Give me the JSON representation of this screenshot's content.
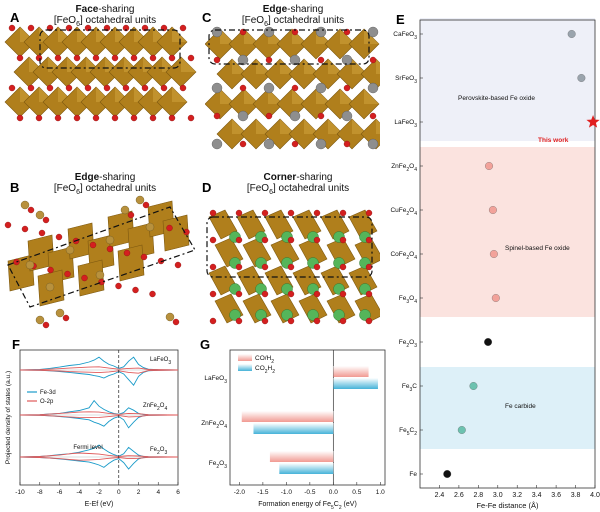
{
  "panels": {
    "A": {
      "letter": "A",
      "bold": "Face",
      "rest": "-sharing",
      "line2": "[FeO6] octahedral units"
    },
    "B": {
      "letter": "B",
      "bold": "Edge",
      "rest": "-sharing",
      "line2": "[FeO6] octahedral units"
    },
    "C": {
      "letter": "C",
      "bold": "Edge",
      "rest": "-sharing",
      "line2": "[FeO6] octahedral units"
    },
    "D": {
      "letter": "D",
      "bold": "Corner",
      "rest": "-sharing",
      "line2": "[FeO6] octahedral units"
    },
    "E": {
      "letter": "E"
    },
    "F": {
      "letter": "F"
    },
    "G": {
      "letter": "G"
    }
  },
  "colors": {
    "fe_oct": "#b07f1c",
    "fe_oct_dark": "#7d5810",
    "oxygen": "#d41f1f",
    "metal_grey": "#8e8e8e",
    "metal_green": "#55b55a",
    "metal_tan": "#b8913d",
    "fe3d": "#1a9bc9",
    "o2p": "#e05a5a",
    "star": "#e02020"
  },
  "chart_data": [
    {
      "type": "scatter",
      "panel": "E",
      "xlabel": "Fe-Fe distance (Å)",
      "xlim": [
        2.2,
        4.0
      ],
      "xticks": [
        "2.4",
        "2.6",
        "2.8",
        "3.0",
        "3.2",
        "3.4",
        "3.6",
        "3.8",
        "4.0"
      ],
      "points": [
        {
          "label": "CaFeO3",
          "base": "CaFeO",
          "sub": "3",
          "x": 3.76,
          "color": "#9aa4ad"
        },
        {
          "label": "SrFeO3",
          "base": "SrFeO",
          "sub": "3",
          "x": 3.86,
          "color": "#9aa4ad"
        },
        {
          "label": "LaFeO3",
          "base": "LaFeO",
          "sub": "3",
          "x": 3.98,
          "color": "#e02020",
          "marker": "star"
        },
        {
          "label": "ZnFe2O4",
          "base": "ZnFe",
          "sub": "2O4",
          "x": 2.91,
          "color": "#f2a29a"
        },
        {
          "label": "CuFe2O4",
          "base": "CuFe",
          "sub": "2O4",
          "x": 2.95,
          "color": "#f2a29a"
        },
        {
          "label": "CoFe2O4",
          "base": "CoFe",
          "sub": "2O4",
          "x": 2.96,
          "color": "#f2a29a"
        },
        {
          "label": "Fe3O4",
          "base": "Fe",
          "sub": "3O4",
          "x": 2.98,
          "color": "#f2a29a"
        },
        {
          "label": "Fe2O3",
          "base": "Fe",
          "sub": "2O3",
          "x": 2.9,
          "color": "#111111"
        },
        {
          "label": "Fe3C",
          "base": "Fe",
          "sub": "3C",
          "x": 2.75,
          "color": "#6cc2b0"
        },
        {
          "label": "Fe5C2",
          "base": "Fe",
          "sub": "5C2",
          "x": 2.63,
          "color": "#6cc2b0"
        },
        {
          "label": "Fe",
          "base": "Fe",
          "sub": "",
          "x": 2.48,
          "color": "#111111"
        }
      ],
      "regions": [
        {
          "name": "Perovskite-based Fe oxide",
          "color": "#eef0f8"
        },
        {
          "name": "Spinel-based Fe oxide",
          "color": "#fbe3df"
        },
        {
          "name": "Fe carbide",
          "color": "#ddf0f8"
        }
      ],
      "annotation": "This work"
    },
    {
      "type": "line",
      "panel": "F",
      "xlabel": "E-Ef (eV)",
      "ylabel": "Projected density of states (a.u.)",
      "xlim": [
        -10,
        6
      ],
      "xticks": [
        "-10",
        "-8",
        "-6",
        "-4",
        "-2",
        "0",
        "2",
        "4",
        "6"
      ],
      "legend": [
        "Fe-3d",
        "O-2p"
      ],
      "annotation": "Fermi level",
      "curve_labels": [
        "LaFeO3",
        "ZnFe2O4",
        "Fe2O3"
      ],
      "series": [
        {
          "name": "LaFeO3 Fe-3d up",
          "color": "#1a9bc9",
          "x": [
            -10,
            -8,
            -7,
            -6,
            -5,
            -4,
            -3,
            -2.5,
            -2,
            -1.5,
            -1,
            -0.5,
            0,
            0.5,
            1,
            1.5,
            2,
            2.5,
            3,
            4,
            5,
            6
          ],
          "y": [
            0,
            0.03,
            0.1,
            0.18,
            0.28,
            0.35,
            0.5,
            0.62,
            0.8,
            0.55,
            0.35,
            0.25,
            0.1,
            0.2,
            0.55,
            0.8,
            0.35,
            0.15,
            0.05,
            0.02,
            0.01,
            0
          ]
        },
        {
          "name": "LaFeO3 Fe-3d down",
          "color": "#1a9bc9",
          "x": [
            -10,
            -8,
            -7,
            -6,
            -5,
            -4,
            -3,
            -2.5,
            -2,
            -1.5,
            -1,
            -0.5,
            0,
            0.5,
            1,
            1.5,
            2,
            2.5,
            3,
            4,
            5,
            6
          ],
          "y": [
            0,
            -0.02,
            -0.05,
            -0.1,
            -0.15,
            -0.22,
            -0.28,
            -0.35,
            -0.4,
            -0.5,
            -0.35,
            -0.25,
            -0.1,
            -0.25,
            -0.6,
            -0.95,
            -0.4,
            -0.15,
            -0.05,
            -0.02,
            -0.01,
            0
          ]
        },
        {
          "name": "LaFeO3 O-2p up",
          "color": "#e05a5a",
          "x": [
            -10,
            -8,
            -6,
            -5,
            -4,
            -3,
            -2,
            -1,
            0,
            1,
            2,
            3,
            6
          ],
          "y": [
            0,
            0.02,
            0.08,
            0.12,
            0.15,
            0.18,
            0.2,
            0.12,
            0.05,
            0.1,
            0.12,
            0.03,
            0
          ]
        },
        {
          "name": "LaFeO3 O-2p down",
          "color": "#e05a5a",
          "x": [
            -10,
            -8,
            -6,
            -5,
            -4,
            -3,
            -2,
            -1,
            0,
            1,
            2,
            3,
            6
          ],
          "y": [
            0,
            -0.02,
            -0.06,
            -0.1,
            -0.12,
            -0.14,
            -0.16,
            -0.12,
            -0.05,
            -0.15,
            -0.2,
            -0.04,
            0
          ]
        },
        {
          "name": "ZnFe2O4 Fe-3d up",
          "color": "#1a9bc9",
          "x": [
            -10,
            -8,
            -7,
            -6,
            -5,
            -4,
            -3,
            -2.5,
            -2,
            -1.5,
            -1,
            -0.5,
            0,
            0.5,
            1,
            1.5,
            2,
            2.5,
            3,
            4,
            5,
            6
          ],
          "y": [
            0,
            0.02,
            0.06,
            0.1,
            0.2,
            0.28,
            0.45,
            0.9,
            0.55,
            0.35,
            0.2,
            0.1,
            0.05,
            0.15,
            0.45,
            0.3,
            0.1,
            0.04,
            0.02,
            0.01,
            0,
            0
          ]
        },
        {
          "name": "ZnFe2O4 Fe-3d down",
          "color": "#1a9bc9",
          "x": [
            -10,
            -8,
            -7,
            -6,
            -5,
            -4,
            -3,
            -2.5,
            -2,
            -1.5,
            -1,
            -0.5,
            0,
            0.5,
            1,
            1.5,
            2,
            2.5,
            3,
            4,
            5,
            6
          ],
          "y": [
            0,
            -0.02,
            -0.05,
            -0.1,
            -0.15,
            -0.22,
            -0.3,
            -0.45,
            -0.55,
            -0.7,
            -0.4,
            -0.2,
            -0.1,
            -0.3,
            -0.8,
            -0.45,
            -0.15,
            -0.05,
            -0.02,
            -0.01,
            0,
            0
          ]
        },
        {
          "name": "ZnFe2O4 O-2p up",
          "color": "#e05a5a",
          "x": [
            -10,
            -8,
            -6,
            -5,
            -4,
            -3,
            -2,
            -1,
            0,
            1,
            2,
            3,
            6
          ],
          "y": [
            0,
            0.02,
            0.1,
            0.14,
            0.18,
            0.2,
            0.18,
            0.1,
            0.04,
            0.1,
            0.08,
            0.02,
            0
          ]
        },
        {
          "name": "ZnFe2O4 O-2p down",
          "color": "#e05a5a",
          "x": [
            -10,
            -8,
            -6,
            -5,
            -4,
            -3,
            -2,
            -1,
            0,
            1,
            2,
            3,
            6
          ],
          "y": [
            0,
            -0.02,
            -0.08,
            -0.12,
            -0.15,
            -0.16,
            -0.15,
            -0.1,
            -0.04,
            -0.12,
            -0.1,
            -0.02,
            0
          ]
        },
        {
          "name": "Fe2O3 Fe-3d up",
          "color": "#1a9bc9",
          "x": [
            -10,
            -8,
            -7,
            -6,
            -5,
            -4,
            -3,
            -2.5,
            -2,
            -1.5,
            -1,
            -0.5,
            0,
            0.5,
            1,
            1.5,
            2,
            2.5,
            3,
            4,
            5,
            6
          ],
          "y": [
            0,
            0.03,
            0.08,
            0.15,
            0.2,
            0.3,
            0.45,
            0.55,
            0.75,
            0.5,
            0.3,
            0.15,
            0.05,
            0.2,
            0.6,
            0.35,
            0.12,
            0.04,
            0.02,
            0.01,
            0,
            0
          ]
        },
        {
          "name": "Fe2O3 Fe-3d down",
          "color": "#1a9bc9",
          "x": [
            -10,
            -8,
            -7,
            -6,
            -5,
            -4,
            -3,
            -2.5,
            -2,
            -1.5,
            -1,
            -0.5,
            0,
            0.5,
            1,
            1.5,
            2,
            2.5,
            3,
            4,
            5,
            6
          ],
          "y": [
            0,
            -0.03,
            -0.07,
            -0.12,
            -0.18,
            -0.25,
            -0.32,
            -0.4,
            -0.5,
            -0.65,
            -0.4,
            -0.2,
            -0.1,
            -0.35,
            -0.75,
            -0.4,
            -0.12,
            -0.04,
            -0.02,
            -0.01,
            0,
            0
          ]
        },
        {
          "name": "Fe2O3 O-2p up",
          "color": "#e05a5a",
          "x": [
            -10,
            -8,
            -6,
            -5,
            -4,
            -3,
            -2,
            -1,
            0,
            1,
            2,
            3,
            6
          ],
          "y": [
            0,
            0.03,
            0.12,
            0.2,
            0.25,
            0.22,
            0.18,
            0.1,
            0.04,
            0.08,
            0.06,
            0.02,
            0
          ]
        },
        {
          "name": "Fe2O3 O-2p down",
          "color": "#e05a5a",
          "x": [
            -10,
            -8,
            -6,
            -5,
            -4,
            -3,
            -2,
            -1,
            0,
            1,
            2,
            3,
            6
          ],
          "y": [
            0,
            -0.03,
            -0.1,
            -0.15,
            -0.2,
            -0.18,
            -0.15,
            -0.08,
            -0.03,
            -0.1,
            -0.08,
            -0.02,
            0
          ]
        }
      ]
    },
    {
      "type": "bar",
      "panel": "G",
      "orientation": "horizontal",
      "xlabel": "Formation energy of Fe5C2 (eV)",
      "xlim": [
        -2.2,
        1.1
      ],
      "xticks": [
        "-2.0",
        "-1.5",
        "-1.0",
        "-0.5",
        "0.0",
        "0.5",
        "1.0"
      ],
      "categories": [
        "LaFeO3",
        "ZnFe2O4",
        "Fe2O3"
      ],
      "series": [
        {
          "name": "CO/H2",
          "values": [
            0.75,
            -1.95,
            -1.35
          ],
          "color": "#f19a92"
        },
        {
          "name": "CO2/H2",
          "values": [
            0.95,
            -1.7,
            -1.15
          ],
          "color": "#46b2d8"
        }
      ]
    }
  ]
}
